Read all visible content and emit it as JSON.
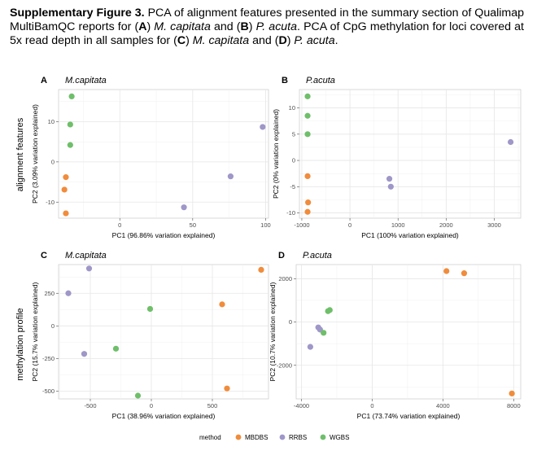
{
  "caption": {
    "label": "Supplementary Figure 3.",
    "t1": " PCA of alignment features presented in the summary section of Qualimap MultiBamQC reports for (",
    "a": "A",
    "t2": ") ",
    "sp1": "M. capitata",
    "t3": " and (",
    "b": "B",
    "t4": ") ",
    "sp2": "P. acuta",
    "t5": ". PCA of CpG methylation for loci covered at 5x read depth in all samples for (",
    "c": "C",
    "t6": ") ",
    "sp3": "M. capitata",
    "t7": " and (",
    "d": "D",
    "t8": ") ",
    "sp4": "P. acuta",
    "t9": "."
  },
  "row_labels": [
    "alignment features",
    "methylation profile"
  ],
  "colors": {
    "MBDBS": "#f08c3c",
    "RRBS": "#9e97c8",
    "WGBS": "#6fbf6a"
  },
  "legend": {
    "title": "method",
    "items": [
      "MBDBS",
      "RRBS",
      "WGBS"
    ]
  },
  "chart_data": [
    {
      "type": "scatter",
      "letter": "A",
      "title": "M.capitata",
      "xlabel": "PC1 (96.86% variation explained)",
      "ylabel": "PC2 (3.09% variation explained)",
      "xlim": [
        -42,
        102
      ],
      "ylim": [
        -14,
        18
      ],
      "xticks": [
        0,
        50,
        100
      ],
      "yticks": [
        -10,
        0,
        10
      ],
      "series": [
        {
          "name": "MBDBS",
          "points": [
            [
              -37,
              -3.8
            ],
            [
              -38,
              -6.9
            ],
            [
              -37,
              -12.8
            ]
          ]
        },
        {
          "name": "RRBS",
          "points": [
            [
              98,
              8.7
            ],
            [
              76,
              -3.6
            ],
            [
              44,
              -11.3
            ]
          ]
        },
        {
          "name": "WGBS",
          "points": [
            [
              -33,
              16.3
            ],
            [
              -34,
              9.3
            ],
            [
              -34,
              4.2
            ]
          ]
        }
      ]
    },
    {
      "type": "scatter",
      "letter": "B",
      "title": "P.acuta",
      "xlabel": "PC1 (100% variation explained)",
      "ylabel": "PC2 (0% variation explained)",
      "xlim": [
        -1050,
        3550
      ],
      "ylim": [
        -11,
        13.5
      ],
      "xticks": [
        -1000,
        0,
        1000,
        2000,
        3000
      ],
      "yticks": [
        -10,
        -5,
        0,
        5,
        10
      ],
      "series": [
        {
          "name": "MBDBS",
          "points": [
            [
              -880,
              -3.0
            ],
            [
              -870,
              -8.0
            ],
            [
              -880,
              -9.8
            ]
          ]
        },
        {
          "name": "RRBS",
          "points": [
            [
              3340,
              3.5
            ],
            [
              820,
              -3.5
            ],
            [
              850,
              -5.0
            ]
          ]
        },
        {
          "name": "WGBS",
          "points": [
            [
              -880,
              12.2
            ],
            [
              -880,
              8.5
            ],
            [
              -880,
              5.0
            ]
          ]
        }
      ]
    },
    {
      "type": "scatter",
      "letter": "C",
      "title": "M.capitata",
      "xlabel": "PC1 (38.96% variation explained)",
      "ylabel": "PC2 (15.7% variation explained)",
      "xlim": [
        -760,
        960
      ],
      "ylim": [
        -560,
        470
      ],
      "xticks": [
        -500,
        0,
        500
      ],
      "yticks": [
        -500,
        -250,
        0,
        250
      ],
      "series": [
        {
          "name": "MBDBS",
          "points": [
            [
              900,
              430
            ],
            [
              580,
              165
            ],
            [
              620,
              -480
            ]
          ]
        },
        {
          "name": "RRBS",
          "points": [
            [
              -510,
              440
            ],
            [
              -680,
              250
            ],
            [
              -550,
              -215
            ]
          ]
        },
        {
          "name": "WGBS",
          "points": [
            [
              -10,
              130
            ],
            [
              -290,
              -175
            ],
            [
              -110,
              -535
            ]
          ]
        }
      ]
    },
    {
      "type": "scatter",
      "letter": "D",
      "title": "P.acuta",
      "xlabel": "PC1 (73.74% variation explained)",
      "ylabel": "PC2 (10.7% variation explained)",
      "xlim": [
        -4300,
        8400
      ],
      "ylim": [
        -3550,
        2650
      ],
      "xticks": [
        -4000,
        0,
        4000,
        8000
      ],
      "yticks": [
        -2000,
        0,
        2000
      ],
      "series": [
        {
          "name": "MBDBS",
          "points": [
            [
              4200,
              2350
            ],
            [
              5200,
              2250
            ],
            [
              7900,
              -3300
            ]
          ]
        },
        {
          "name": "RRBS",
          "points": [
            [
              -3050,
              -250
            ],
            [
              -2950,
              -350
            ],
            [
              -3500,
              -1150
            ]
          ]
        },
        {
          "name": "WGBS",
          "points": [
            [
              -2500,
              500
            ],
            [
              -2400,
              550
            ],
            [
              -2750,
              -500
            ]
          ]
        }
      ]
    }
  ]
}
